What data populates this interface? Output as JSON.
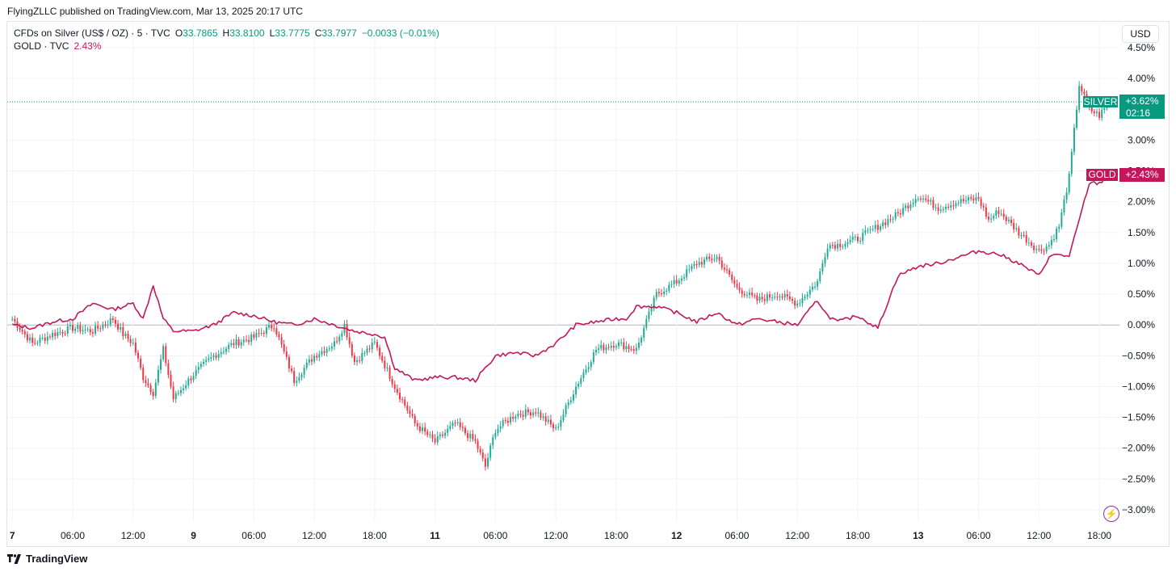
{
  "publisher_line": "FlyingZLLC published on TradingView.com, Mar 13, 2025 20:17 UTC",
  "legend": {
    "main_symbol": "CFDs on Silver (US$ / OZ) · 5 · TVC",
    "open_label": "O",
    "open_value": "33.7865",
    "high_label": "H",
    "high_value": "33.8100",
    "low_label": "L",
    "low_value": "33.7775",
    "close_label": "C",
    "close_value": "33.7977",
    "change": "−0.0033 (−0.01%)",
    "compare_symbol": "GOLD · TVC",
    "compare_value": "2.43%"
  },
  "currency_button": "USD",
  "brand": "TradingView",
  "tags": {
    "silver_name": "SILVER",
    "silver_value": "+3.62%",
    "silver_countdown": "02:16",
    "gold_name": "GOLD",
    "gold_value": "+2.43%"
  },
  "colors": {
    "up": "#22ab94",
    "down": "#f23645",
    "gold_line": "#c2185b",
    "silver_tag": "#089981",
    "gold_tag": "#c2185b",
    "grid": "#f0f3fa",
    "zero_line": "#b2b5be"
  },
  "chart_data": {
    "type": "line",
    "y_unit": "percent change",
    "ylim": [
      -3.0,
      4.5
    ],
    "y_ticks": [
      "4.50%",
      "4.00%",
      "3.50%",
      "3.00%",
      "2.50%",
      "2.00%",
      "1.50%",
      "1.00%",
      "0.50%",
      "0.00%",
      "−0.50%",
      "−1.00%",
      "−1.50%",
      "−2.00%",
      "−2.50%",
      "−3.00%"
    ],
    "x_ticks": [
      "7",
      "06:00",
      "12:00",
      "9",
      "06:00",
      "12:00",
      "18:00",
      "11",
      "06:00",
      "12:00",
      "18:00",
      "12",
      "06:00",
      "12:00",
      "18:00",
      "13",
      "06:00",
      "12:00",
      "18:00"
    ],
    "x_ticks_bold": [
      true,
      false,
      false,
      true,
      false,
      false,
      false,
      true,
      false,
      false,
      false,
      true,
      false,
      false,
      false,
      true,
      false,
      false,
      false
    ],
    "x_tick_hours": [
      0,
      6,
      12,
      18,
      24,
      30,
      36,
      42,
      48,
      54,
      60,
      66,
      72,
      78,
      84,
      90,
      96,
      102,
      108
    ],
    "x_range_hours": [
      -0.5,
      110
    ],
    "grid": true,
    "series": [
      {
        "name": "SILVER",
        "style": "candles",
        "last": 3.62,
        "x_hours": [
          0,
          2,
          4,
          6,
          8,
          10,
          11,
          12,
          13,
          14,
          15,
          16,
          17,
          18,
          20,
          22,
          24,
          26,
          28,
          30,
          32,
          33,
          34,
          36,
          38,
          40,
          42,
          44,
          46,
          47,
          48,
          50,
          52,
          54,
          56,
          58,
          60,
          62,
          64,
          66,
          68,
          70,
          72,
          74,
          76,
          78,
          80,
          81,
          82,
          84,
          86,
          88,
          90,
          92,
          94,
          96,
          97,
          98,
          100,
          102,
          103,
          104,
          105,
          106,
          107,
          108,
          109
        ],
        "values": [
          0.1,
          -0.3,
          -0.15,
          -0.05,
          -0.1,
          0.1,
          -0.15,
          -0.3,
          -0.85,
          -1.1,
          -0.4,
          -1.2,
          -1.0,
          -0.8,
          -0.5,
          -0.3,
          -0.2,
          0.0,
          -0.9,
          -0.5,
          -0.3,
          0.0,
          -0.6,
          -0.3,
          -1.0,
          -1.6,
          -1.9,
          -1.6,
          -1.9,
          -2.3,
          -1.7,
          -1.45,
          -1.4,
          -1.7,
          -1.0,
          -0.4,
          -0.3,
          -0.4,
          0.5,
          0.7,
          1.0,
          1.1,
          0.6,
          0.4,
          0.5,
          0.35,
          0.7,
          1.3,
          1.3,
          1.4,
          1.6,
          1.8,
          2.1,
          1.9,
          2.0,
          2.05,
          1.7,
          1.85,
          1.5,
          1.2,
          1.3,
          1.6,
          2.4,
          3.9,
          3.5,
          3.4,
          3.62
        ]
      },
      {
        "name": "GOLD",
        "style": "line",
        "last": 2.43,
        "x_hours": [
          0,
          2,
          4,
          6,
          8,
          10,
          12,
          13,
          14,
          15,
          16,
          17,
          18,
          20,
          22,
          24,
          26,
          28,
          30,
          32,
          34,
          36,
          37,
          38,
          40,
          42,
          44,
          46,
          48,
          50,
          52,
          54,
          56,
          58,
          60,
          61,
          62,
          64,
          66,
          68,
          70,
          72,
          74,
          76,
          78,
          80,
          81,
          82,
          84,
          86,
          88,
          90,
          92,
          94,
          96,
          98,
          100,
          102,
          103,
          104,
          105,
          106,
          107,
          108,
          109
        ],
        "values": [
          0.0,
          -0.05,
          0.05,
          0.1,
          0.35,
          0.25,
          0.35,
          0.1,
          0.65,
          0.1,
          -0.1,
          -0.1,
          -0.1,
          0.0,
          0.2,
          0.15,
          0.05,
          0.0,
          0.1,
          0.0,
          -0.1,
          -0.15,
          -0.2,
          -0.7,
          -0.9,
          -0.85,
          -0.85,
          -0.9,
          -0.5,
          -0.45,
          -0.5,
          -0.3,
          0.0,
          0.05,
          0.1,
          0.1,
          0.3,
          0.3,
          0.2,
          0.05,
          0.2,
          0.0,
          0.1,
          0.05,
          0.0,
          0.4,
          0.15,
          0.05,
          0.15,
          -0.05,
          0.8,
          0.95,
          1.0,
          1.1,
          1.2,
          1.15,
          1.0,
          0.8,
          1.1,
          1.15,
          1.1,
          1.7,
          2.3,
          2.3,
          2.43
        ]
      }
    ]
  }
}
